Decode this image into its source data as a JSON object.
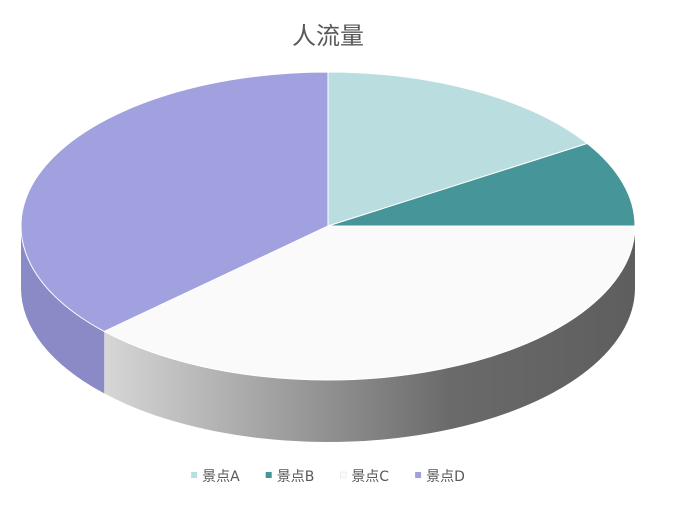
{
  "chart_data": {
    "type": "pie",
    "title": "人流量",
    "categories": [
      "景点A",
      "景点B",
      "景点C",
      "景点D"
    ],
    "values": [
      16,
      9,
      38,
      37
    ],
    "legend_position": "bottom",
    "three_d": true,
    "colors": {
      "景点A": "#BADDDF",
      "景点B": "#459599",
      "景点C": "#FAFAFA",
      "景点D": "#A1A1DF"
    },
    "side_colors": {
      "景点A": "#98BFC1",
      "景点B": "#37777A",
      "景点C": "gradient-gray",
      "景点D": "#8A8AC6"
    }
  }
}
